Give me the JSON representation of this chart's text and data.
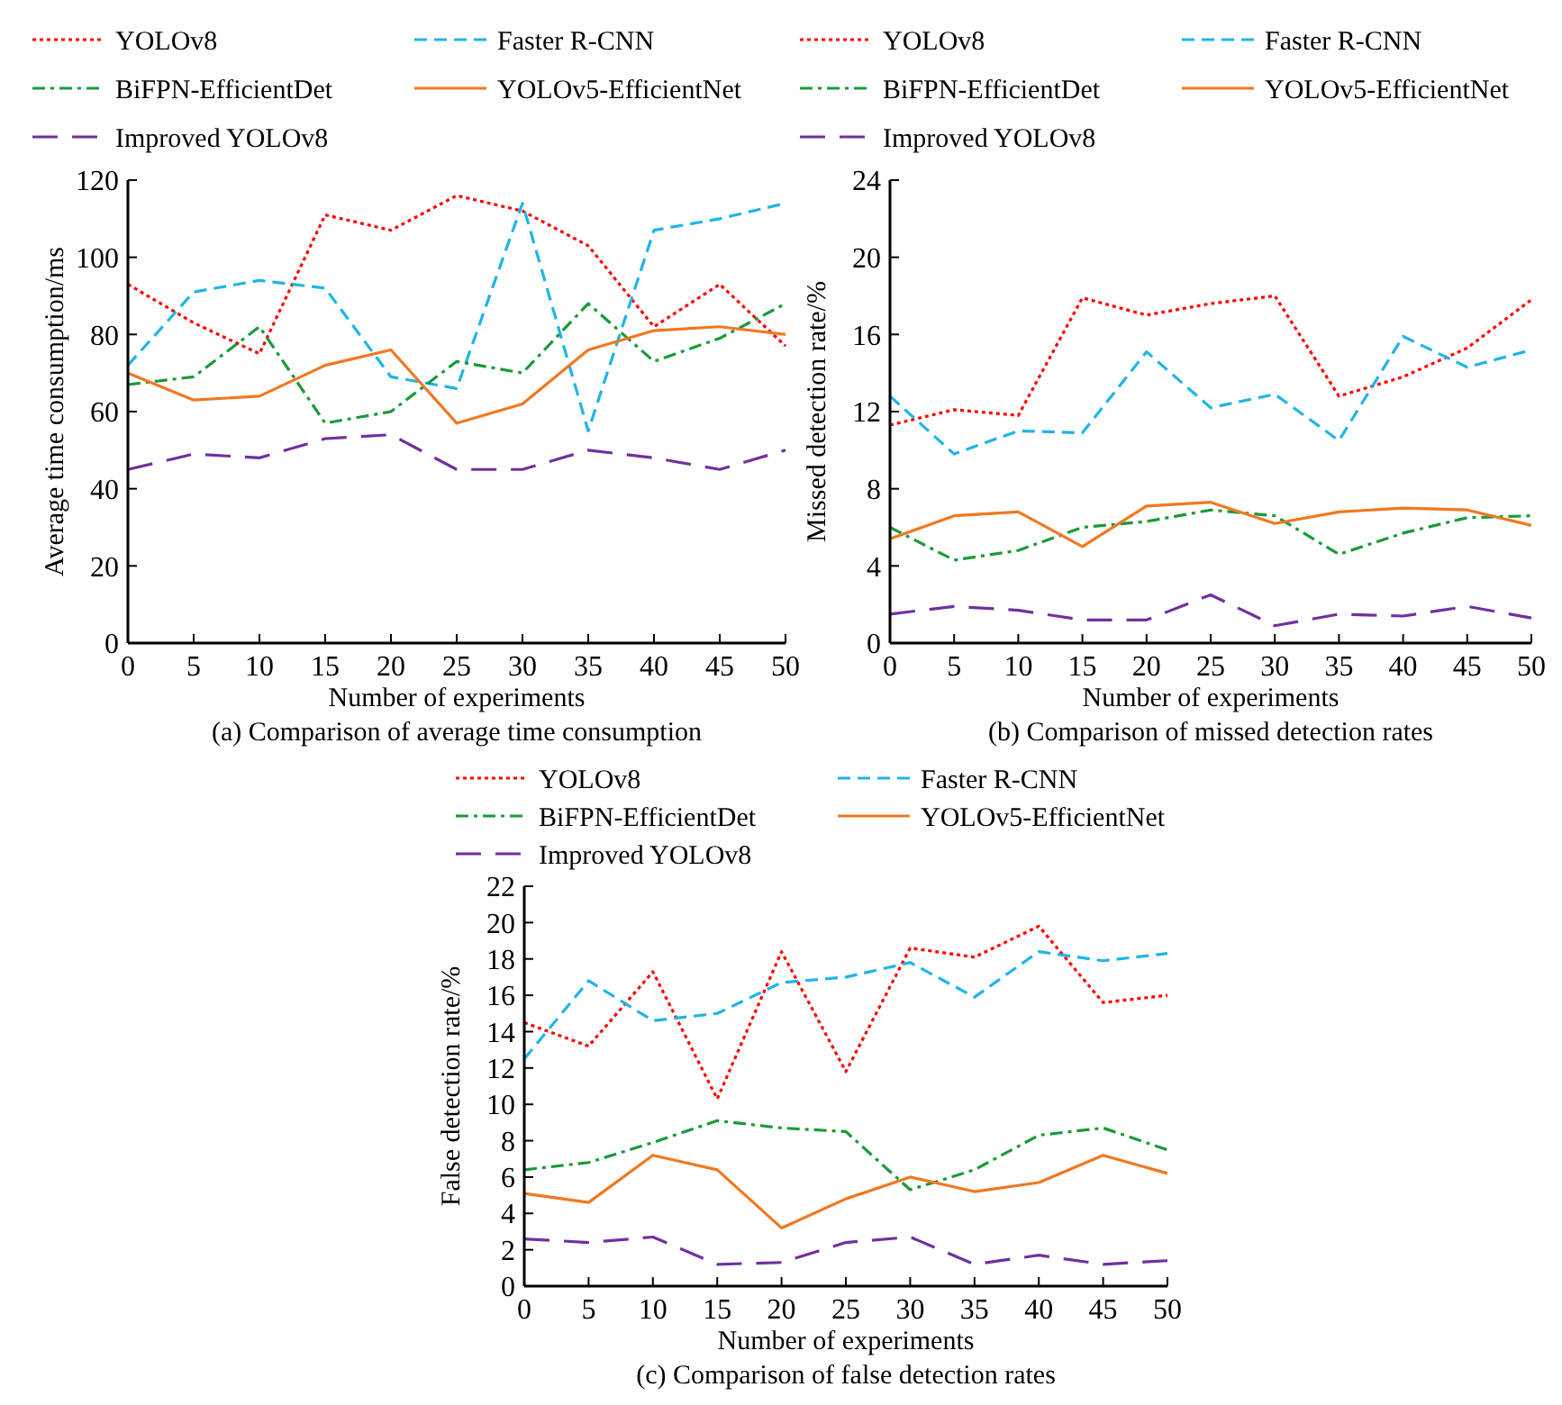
{
  "chart_data": [
    {
      "type": "line",
      "title": "(a) Comparison of average time consumption",
      "xlabel": "Number of experiments",
      "ylabel": "Average time consumption/ms",
      "x": [
        0,
        5,
        10,
        15,
        20,
        25,
        30,
        35,
        40,
        45,
        50
      ],
      "xlim": [
        0,
        50
      ],
      "xticks": [
        0,
        5,
        10,
        15,
        20,
        25,
        30,
        35,
        40,
        45,
        50
      ],
      "ylim": [
        0,
        120
      ],
      "yticks": [
        0,
        20,
        40,
        60,
        80,
        100,
        120
      ],
      "grid": false,
      "legend": "top",
      "marker": "none",
      "series": [
        {
          "name": "YOLOv8",
          "color": "#ff0000",
          "line_style": "dotted",
          "values": [
            93,
            83,
            75,
            111,
            107,
            116,
            112,
            103,
            82,
            93,
            77
          ]
        },
        {
          "name": "Faster R-CNN",
          "color": "#1fb4e8",
          "line_style": "dashed",
          "values": [
            72,
            91,
            94,
            92,
            69,
            66,
            114,
            55,
            107,
            110,
            114
          ]
        },
        {
          "name": "BiFPN-EfficientDet",
          "color": "#1a9a3a",
          "line_style": "dashdot",
          "values": [
            67,
            69,
            82,
            57,
            60,
            73,
            70,
            88,
            73,
            79,
            88
          ]
        },
        {
          "name": "YOLOv5-EfficientNet",
          "color": "#f07820",
          "line_style": "solid",
          "values": [
            70,
            63,
            64,
            72,
            76,
            57,
            62,
            76,
            81,
            82,
            80
          ]
        },
        {
          "name": "Improved YOLOv8",
          "color": "#7030a0",
          "line_style": "longdash",
          "values": [
            45,
            49,
            48,
            53,
            54,
            45,
            45,
            50,
            48,
            45,
            50
          ]
        }
      ]
    },
    {
      "type": "line",
      "title": "(b) Comparison of missed detection rates",
      "xlabel": "Number of experiments",
      "ylabel": "Missed detection rate/%",
      "x": [
        0,
        5,
        10,
        15,
        20,
        25,
        30,
        35,
        40,
        45,
        50
      ],
      "xlim": [
        0,
        50
      ],
      "xticks": [
        0,
        5,
        10,
        15,
        20,
        25,
        30,
        35,
        40,
        45,
        50
      ],
      "ylim": [
        0,
        24
      ],
      "yticks": [
        0,
        4,
        8,
        12,
        16,
        20,
        24
      ],
      "grid": false,
      "legend": "top",
      "marker": "none",
      "series": [
        {
          "name": "YOLOv8",
          "color": "#ff0000",
          "line_style": "dotted",
          "values": [
            11.3,
            12.1,
            11.8,
            17.9,
            17.0,
            17.6,
            18.0,
            12.8,
            13.8,
            15.3,
            17.8
          ]
        },
        {
          "name": "Faster R-CNN",
          "color": "#1fb4e8",
          "line_style": "dashed",
          "values": [
            12.8,
            9.8,
            11.0,
            10.9,
            15.1,
            12.2,
            12.9,
            10.5,
            15.9,
            14.3,
            15.2
          ]
        },
        {
          "name": "BiFPN-EfficientDet",
          "color": "#1a9a3a",
          "line_style": "dashdot",
          "values": [
            6.0,
            4.3,
            4.8,
            6.0,
            6.3,
            6.9,
            6.6,
            4.6,
            5.7,
            6.5,
            6.6
          ]
        },
        {
          "name": "YOLOv5-EfficientNet",
          "color": "#f07820",
          "line_style": "solid",
          "values": [
            5.4,
            6.6,
            6.8,
            5.0,
            7.1,
            7.3,
            6.2,
            6.8,
            7.0,
            6.9,
            6.1
          ]
        },
        {
          "name": "Improved YOLOv8",
          "color": "#7030a0",
          "line_style": "longdash",
          "values": [
            1.5,
            1.9,
            1.7,
            1.2,
            1.2,
            2.5,
            0.9,
            1.5,
            1.4,
            1.9,
            1.3
          ]
        }
      ]
    },
    {
      "type": "line",
      "title": "(c) Comparison of false detection rates",
      "xlabel": "Number of experiments",
      "ylabel": "False detection rate/%",
      "x": [
        0,
        5,
        10,
        15,
        20,
        25,
        30,
        35,
        40,
        45,
        50
      ],
      "xlim": [
        0,
        50
      ],
      "xticks": [
        0,
        5,
        10,
        15,
        20,
        25,
        30,
        35,
        40,
        45,
        50
      ],
      "ylim": [
        0,
        22
      ],
      "yticks": [
        0,
        2,
        4,
        6,
        8,
        10,
        12,
        14,
        16,
        18,
        20,
        22
      ],
      "grid": false,
      "legend": "top",
      "marker": "none",
      "series": [
        {
          "name": "YOLOv8",
          "color": "#ff0000",
          "line_style": "dotted",
          "values": [
            14.5,
            13.2,
            17.3,
            10.3,
            18.4,
            11.8,
            18.6,
            18.1,
            19.8,
            15.6,
            16.0
          ]
        },
        {
          "name": "Faster R-CNN",
          "color": "#1fb4e8",
          "line_style": "dashed",
          "values": [
            12.5,
            16.8,
            14.6,
            15.0,
            16.7,
            17.0,
            17.8,
            15.9,
            18.4,
            17.9,
            18.3
          ]
        },
        {
          "name": "BiFPN-EfficientDet",
          "color": "#1a9a3a",
          "line_style": "dashdot",
          "values": [
            6.4,
            6.8,
            7.9,
            9.1,
            8.7,
            8.5,
            5.3,
            6.4,
            8.3,
            8.7,
            7.5
          ]
        },
        {
          "name": "YOLOv5-EfficientNet",
          "color": "#f07820",
          "line_style": "solid",
          "values": [
            5.1,
            4.6,
            7.2,
            6.4,
            3.2,
            4.8,
            6.0,
            5.2,
            5.7,
            7.2,
            6.2
          ]
        },
        {
          "name": "Improved YOLOv8",
          "color": "#7030a0",
          "line_style": "longdash",
          "values": [
            2.6,
            2.4,
            2.7,
            1.2,
            1.3,
            2.4,
            2.7,
            1.2,
            1.7,
            1.2,
            1.4
          ]
        }
      ]
    }
  ]
}
